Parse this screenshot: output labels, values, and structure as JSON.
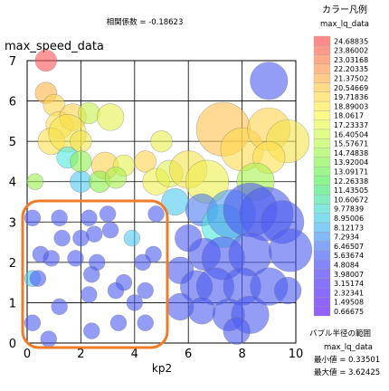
{
  "chart_data": {
    "type": "scatter",
    "title": "相関係数 = -0.18623",
    "xlabel": "kp2",
    "ylabel": "max_speed_data",
    "xlim": [
      0,
      10
    ],
    "ylim": [
      0,
      7
    ],
    "xticks": [
      0,
      2,
      4,
      6,
      8,
      10
    ],
    "yticks": [
      0,
      1,
      2,
      3,
      4,
      5,
      6,
      7
    ],
    "grid": true,
    "color_legend": {
      "title": "カラー凡例",
      "field": "max_lq_data",
      "levels": [
        "24.68835",
        "23.86002",
        "23.03168",
        "22.20335",
        "21.37502",
        "20.54669",
        "19.71836",
        "18.89003",
        "18.0617",
        "17.23337",
        "16.40504",
        "15.57671",
        "14.74838",
        "13.92004",
        "13.09171",
        "12.26338",
        "11.43505",
        "10.60672",
        "9.77839",
        "8.95006",
        "8.12173",
        "7.2934",
        "6.46507",
        "5.63674",
        "4.8084",
        "3.98007",
        "3.15174",
        "2.32341",
        "1.49508",
        "0.66675"
      ],
      "colors": [
        "#ff8a8a",
        "#ff9a8a",
        "#ffab8a",
        "#ffbc8a",
        "#ffcc8a",
        "#ffdb8a",
        "#ffe78a",
        "#fff18a",
        "#fbfa8a",
        "#effb8a",
        "#e2fc8a",
        "#d3fb8a",
        "#c2fa8a",
        "#b0f88a",
        "#9ef68c",
        "#8ef490",
        "#84f0a4",
        "#84ecc0",
        "#84e6dc",
        "#84dcef",
        "#84cdf6",
        "#84b9f8",
        "#84a6f9",
        "#8495fa",
        "#8487fb",
        "#867cfb",
        "#8672fb",
        "#8a6cfb",
        "#8e66fb",
        "#9262fb"
      ]
    },
    "size_legend": {
      "title": "バブル半径の範囲",
      "field": "max_lq_data",
      "min_label": "最小値 = 0.33501",
      "max_label": "最大値 = 3.62425"
    },
    "annotation": "orange rounded rectangle around cluster x 0–5, y 0–3.3",
    "series": [
      {
        "points": [
          {
            "x": 0.7,
            "y": 7.0,
            "r": 0.4,
            "c": "#ff5555"
          },
          {
            "x": 0.7,
            "y": 6.2,
            "r": 0.4,
            "c": "#ffb347"
          },
          {
            "x": 1.0,
            "y": 5.9,
            "r": 0.4,
            "c": "#ffd24d"
          },
          {
            "x": 1.2,
            "y": 5.4,
            "r": 0.5,
            "c": "#ffe14d"
          },
          {
            "x": 1.7,
            "y": 5.6,
            "r": 0.5,
            "c": "#ffd24d"
          },
          {
            "x": 2.3,
            "y": 5.7,
            "r": 0.4,
            "c": "#c6f04d"
          },
          {
            "x": 3.1,
            "y": 5.6,
            "r": 0.5,
            "c": "#e8f04d"
          },
          {
            "x": 0.9,
            "y": 5.0,
            "r": 0.5,
            "c": "#ffe14d"
          },
          {
            "x": 1.5,
            "y": 5.2,
            "r": 0.7,
            "c": "#f4e24d"
          },
          {
            "x": 2.0,
            "y": 5.0,
            "r": 0.4,
            "c": "#f2e44d"
          },
          {
            "x": 1.5,
            "y": 4.6,
            "r": 0.4,
            "c": "#4de8e0"
          },
          {
            "x": 2.0,
            "y": 4.5,
            "r": 0.4,
            "c": "#8cf04d"
          },
          {
            "x": 2.9,
            "y": 4.4,
            "r": 0.5,
            "c": "#ffd24d"
          },
          {
            "x": 3.6,
            "y": 4.4,
            "r": 0.4,
            "c": "#e5f04d"
          },
          {
            "x": 4.4,
            "y": 4.5,
            "r": 0.4,
            "c": "#ffd24d"
          },
          {
            "x": 5.0,
            "y": 5.0,
            "r": 0.4,
            "c": "#e8f04d"
          },
          {
            "x": 0.3,
            "y": 4.0,
            "r": 0.3,
            "c": "#9af04d"
          },
          {
            "x": 2.0,
            "y": 4.0,
            "r": 0.4,
            "c": "#4dc8f0"
          },
          {
            "x": 2.7,
            "y": 4.0,
            "r": 0.4,
            "c": "#8cf04d"
          },
          {
            "x": 3.3,
            "y": 4.1,
            "r": 0.4,
            "c": "#a8f04d"
          },
          {
            "x": 4.8,
            "y": 4.0,
            "r": 0.5,
            "c": "#f0f04d"
          },
          {
            "x": 5.3,
            "y": 4.2,
            "r": 0.5,
            "c": "#e1f04d"
          },
          {
            "x": 6.0,
            "y": 4.3,
            "r": 0.7,
            "c": "#f4e24d"
          },
          {
            "x": 6.7,
            "y": 4.0,
            "r": 0.8,
            "c": "#ecf04d"
          },
          {
            "x": 7.3,
            "y": 5.3,
            "r": 1.0,
            "c": "#ffc14d"
          },
          {
            "x": 8.0,
            "y": 4.8,
            "r": 0.8,
            "c": "#ffdb4d"
          },
          {
            "x": 9.0,
            "y": 5.3,
            "r": 0.8,
            "c": "#ffd24d"
          },
          {
            "x": 9.7,
            "y": 5.0,
            "r": 0.8,
            "c": "#f4e24d"
          },
          {
            "x": 9.0,
            "y": 4.6,
            "r": 0.6,
            "c": "#ffe14d"
          },
          {
            "x": 9.0,
            "y": 6.5,
            "r": 0.7,
            "c": "#4d5cf0"
          },
          {
            "x": 8.5,
            "y": 4.0,
            "r": 0.7,
            "c": "#a8f04d"
          },
          {
            "x": 5.5,
            "y": 3.5,
            "r": 0.5,
            "c": "#4dc8f0"
          },
          {
            "x": 6.5,
            "y": 3.3,
            "r": 0.6,
            "c": "#4d7bf0"
          },
          {
            "x": 7.3,
            "y": 2.9,
            "r": 0.8,
            "c": "#4de8e0"
          },
          {
            "x": 7.6,
            "y": 3.2,
            "r": 0.9,
            "c": "#4d9cf0"
          },
          {
            "x": 8.3,
            "y": 3.3,
            "r": 1.0,
            "c": "#4d5cf0"
          },
          {
            "x": 8.9,
            "y": 3.2,
            "r": 1.0,
            "c": "#4d5cf0"
          },
          {
            "x": 9.5,
            "y": 3.0,
            "r": 0.8,
            "c": "#4d5cf0"
          },
          {
            "x": 9.8,
            "y": 2.3,
            "r": 0.8,
            "c": "#4d5cf0"
          },
          {
            "x": 6.0,
            "y": 2.6,
            "r": 0.5,
            "c": "#4d5cf0"
          },
          {
            "x": 6.6,
            "y": 2.2,
            "r": 0.6,
            "c": "#4d5cf0"
          },
          {
            "x": 7.3,
            "y": 2.1,
            "r": 0.8,
            "c": "#4d5cf0"
          },
          {
            "x": 8.3,
            "y": 2.2,
            "r": 0.8,
            "c": "#4d5cf0"
          },
          {
            "x": 5.7,
            "y": 1.8,
            "r": 0.5,
            "c": "#4d5cf0"
          },
          {
            "x": 6.3,
            "y": 1.4,
            "r": 0.6,
            "c": "#4d5cf0"
          },
          {
            "x": 7.0,
            "y": 1.4,
            "r": 0.7,
            "c": "#4d5cf0"
          },
          {
            "x": 8.0,
            "y": 1.4,
            "r": 0.7,
            "c": "#4d5cf0"
          },
          {
            "x": 9.0,
            "y": 1.4,
            "r": 0.7,
            "c": "#4d5cf0"
          },
          {
            "x": 9.7,
            "y": 1.3,
            "r": 0.5,
            "c": "#4d5cf0"
          },
          {
            "x": 5.7,
            "y": 0.9,
            "r": 0.5,
            "c": "#4d5cf0"
          },
          {
            "x": 6.5,
            "y": 0.8,
            "r": 0.5,
            "c": "#4d5cf0"
          },
          {
            "x": 7.5,
            "y": 0.7,
            "r": 0.6,
            "c": "#4d5cf0"
          },
          {
            "x": 8.3,
            "y": 0.7,
            "r": 0.7,
            "c": "#4d5cf0"
          },
          {
            "x": 7.8,
            "y": 0.3,
            "r": 0.5,
            "c": "#4d5cf0"
          },
          {
            "x": 0.2,
            "y": 3.1,
            "r": 0.3,
            "c": "#4d5cf0"
          },
          {
            "x": 1.2,
            "y": 3.1,
            "r": 0.3,
            "c": "#4d5cf0"
          },
          {
            "x": 2.3,
            "y": 3.1,
            "r": 0.3,
            "c": "#4d5cf0"
          },
          {
            "x": 3.0,
            "y": 3.2,
            "r": 0.3,
            "c": "#4d5cf0"
          },
          {
            "x": 4.8,
            "y": 3.2,
            "r": 0.3,
            "c": "#4d5cf0"
          },
          {
            "x": 1.3,
            "y": 2.6,
            "r": 0.3,
            "c": "#4d5cf0"
          },
          {
            "x": 2.0,
            "y": 2.6,
            "r": 0.3,
            "c": "#4d5cf0"
          },
          {
            "x": 2.5,
            "y": 2.7,
            "r": 0.3,
            "c": "#4d5cf0"
          },
          {
            "x": 3.1,
            "y": 2.8,
            "r": 0.3,
            "c": "#4d5cf0"
          },
          {
            "x": 3.9,
            "y": 2.6,
            "r": 0.3,
            "c": "#4dc8f0"
          },
          {
            "x": 0.5,
            "y": 2.2,
            "r": 0.3,
            "c": "#4d5cf0"
          },
          {
            "x": 0.9,
            "y": 2.1,
            "r": 0.3,
            "c": "#4d5cf0"
          },
          {
            "x": 1.8,
            "y": 2.1,
            "r": 0.3,
            "c": "#4d5cf0"
          },
          {
            "x": 2.6,
            "y": 2.0,
            "r": 0.3,
            "c": "#4d5cf0"
          },
          {
            "x": 4.3,
            "y": 2.0,
            "r": 0.3,
            "c": "#4d5cf0"
          },
          {
            "x": 4.7,
            "y": 2.2,
            "r": 0.3,
            "c": "#4d5cf0"
          },
          {
            "x": 0.2,
            "y": 1.6,
            "r": 0.3,
            "c": "#4dc8f0"
          },
          {
            "x": 0.4,
            "y": 1.6,
            "r": 0.3,
            "c": "#4d5cf0"
          },
          {
            "x": 2.4,
            "y": 1.7,
            "r": 0.3,
            "c": "#4d5cf0"
          },
          {
            "x": 3.6,
            "y": 1.5,
            "r": 0.3,
            "c": "#4d5cf0"
          },
          {
            "x": 3.3,
            "y": 1.3,
            "r": 0.3,
            "c": "#4d5cf0"
          },
          {
            "x": 4.4,
            "y": 1.3,
            "r": 0.3,
            "c": "#4d5cf0"
          },
          {
            "x": 2.3,
            "y": 1.2,
            "r": 0.3,
            "c": "#4d5cf0"
          },
          {
            "x": 4.0,
            "y": 1.0,
            "r": 0.3,
            "c": "#4d5cf0"
          },
          {
            "x": 1.2,
            "y": 0.9,
            "r": 0.3,
            "c": "#4d5cf0"
          },
          {
            "x": 3.4,
            "y": 0.5,
            "r": 0.3,
            "c": "#4d5cf0"
          },
          {
            "x": 2.4,
            "y": 0.3,
            "r": 0.3,
            "c": "#4d5cf0"
          },
          {
            "x": 4.4,
            "y": 0.5,
            "r": 0.3,
            "c": "#4d5cf0"
          },
          {
            "x": 0.2,
            "y": 0.5,
            "r": 0.3,
            "c": "#4d5cf0"
          },
          {
            "x": 0.8,
            "y": 0.1,
            "r": 0.3,
            "c": "#4d5cf0"
          }
        ]
      }
    ]
  }
}
